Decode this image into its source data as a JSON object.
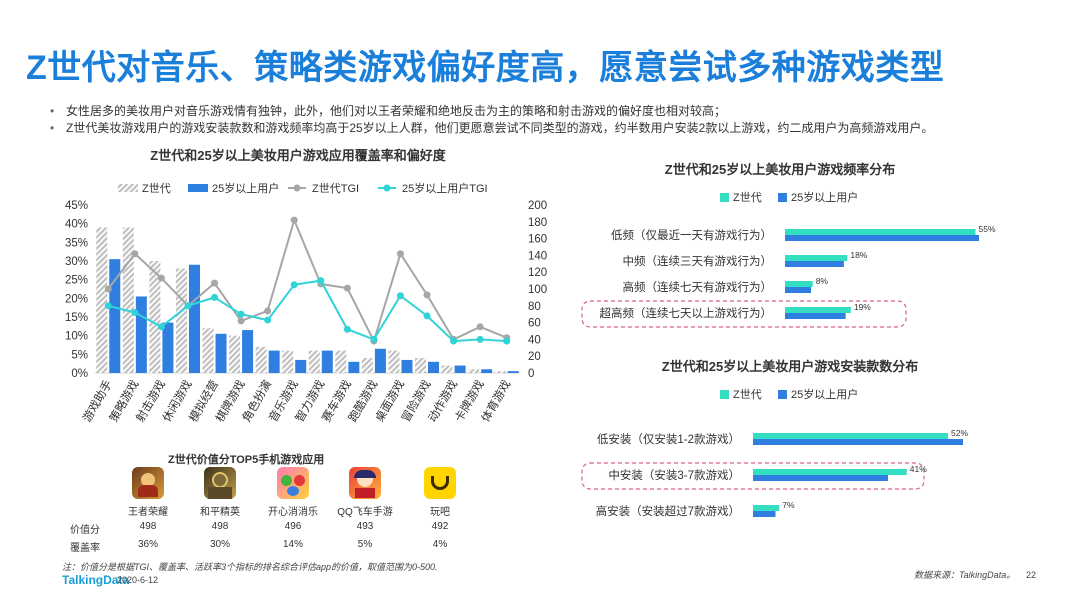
{
  "title": "Z世代对音乐、策略类游戏偏好度高，愿意尝试多种游戏类型",
  "bullets": [
    "女性居多的美妆用户对音乐游戏情有独钟，此外，他们对以王者荣耀和绝地反击为主的策略和射击游戏的偏好度也相对较高；",
    "Z世代美妆游戏用户的游戏安装款数和游戏频率均高于25岁以上人群，他们更愿意尝试不同类型的游戏，约半数用户安装2款以上游戏，约二成用户为高频游戏用户。"
  ],
  "colors": {
    "gen_z": "#c0c0c0",
    "over25": "#2e7fe0",
    "gen_z_tgi": "#a6a6a6",
    "over25_tgi": "#2fd3d8",
    "gen_z_h": "#33dfc0",
    "over25_h": "#2e7fe0",
    "title": "#1a7fdb",
    "highlight": "#d9657d"
  },
  "chart_data": [
    {
      "type": "bar",
      "title": "Z世代和25岁以上美妆用户游戏应用覆盖率和偏好度",
      "categories": [
        "游戏助手",
        "策略游戏",
        "射击游戏",
        "休闲游戏",
        "模拟经营",
        "棋牌游戏",
        "角色扮演",
        "音乐游戏",
        "智力游戏",
        "赛车游戏",
        "跑酷游戏",
        "桌面游戏",
        "冒险游戏",
        "动作游戏",
        "卡牌游戏",
        "体育游戏"
      ],
      "series": [
        {
          "name": "Z世代",
          "kind": "bar",
          "axis": "left",
          "values": [
            39,
            39,
            30,
            28,
            12,
            10,
            7,
            6,
            6,
            6,
            4,
            6,
            4,
            2,
            1,
            0.5
          ]
        },
        {
          "name": "25岁以上用户",
          "kind": "bar",
          "axis": "left",
          "values": [
            30.5,
            20.5,
            13.5,
            29,
            10.5,
            11.5,
            6,
            3.5,
            6,
            3,
            6.5,
            3.5,
            3,
            2,
            1,
            0.5
          ]
        },
        {
          "name": "Z世代TGI",
          "kind": "line",
          "axis": "right",
          "values": [
            100,
            142,
            113,
            80,
            107,
            62,
            74,
            182,
            106,
            101,
            38,
            142,
            93,
            40,
            55,
            42
          ]
        },
        {
          "name": "25岁以上用户TGI",
          "kind": "line",
          "axis": "right",
          "values": [
            80,
            72,
            55,
            80,
            90,
            70,
            63,
            105,
            110,
            52,
            40,
            92,
            68,
            38,
            40,
            38
          ]
        }
      ],
      "left_axis": {
        "ticks": [
          "45%",
          "40%",
          "35%",
          "30%",
          "25%",
          "20%",
          "15%",
          "10%",
          "5%",
          "0%"
        ],
        "ylim": [
          0,
          45
        ]
      },
      "right_axis": {
        "ticks": [
          "200",
          "180",
          "160",
          "140",
          "120",
          "100",
          "80",
          "60",
          "40",
          "20",
          "0"
        ],
        "ylim": [
          0,
          200
        ]
      }
    },
    {
      "type": "bar",
      "orientation": "horizontal",
      "title": "Z世代和25岁以上美妆用户游戏频率分布",
      "categories": [
        "低频（仅最近一天有游戏行为）",
        "中频（连续三天有游戏行为）",
        "高频（连续七天有游戏行为）",
        "超高频（连续七天以上游戏行为）"
      ],
      "series": [
        {
          "name": "Z世代",
          "values": [
            55,
            18,
            8,
            19
          ]
        },
        {
          "name": "25岁以上用户",
          "values": [
            56,
            17,
            7.5,
            17.5
          ]
        }
      ],
      "data_labels": [
        "55%",
        "18%",
        "8%",
        "19%"
      ],
      "highlight": "超高频（连续七天以上游戏行为）"
    },
    {
      "type": "bar",
      "orientation": "horizontal",
      "title": "Z世代和25岁以上美妆用户游戏安装款数分布",
      "categories": [
        "低安装（仅安装1-2款游戏）",
        "中安装（安装3-7款游戏）",
        "高安装（安装超过7款游戏）"
      ],
      "series": [
        {
          "name": "Z世代",
          "values": [
            52,
            41,
            7
          ]
        },
        {
          "name": "25岁以上用户",
          "values": [
            56,
            36,
            6
          ]
        }
      ],
      "data_labels": [
        "52%",
        "41%",
        "7%"
      ],
      "highlight": "中安装（安装3-7款游戏）"
    }
  ],
  "top5": {
    "title": "Z世代价值分TOP5手机游戏应用",
    "row_labels": {
      "score": "价值分",
      "coverage": "覆盖率"
    },
    "apps": [
      {
        "name": "王者荣耀",
        "score": "498",
        "coverage": "36%",
        "icon": "wangzhe-icon"
      },
      {
        "name": "和平精英",
        "score": "498",
        "coverage": "30%",
        "icon": "heping-icon"
      },
      {
        "name": "开心消消乐",
        "score": "496",
        "coverage": "14%",
        "icon": "xiaoxiaole-icon"
      },
      {
        "name": "QQ飞车手游",
        "score": "493",
        "coverage": "5%",
        "icon": "qqfeiche-icon"
      },
      {
        "name": "玩吧",
        "score": "492",
        "coverage": "4%",
        "icon": "wanba-icon"
      }
    ]
  },
  "footer": {
    "note": "注：价值分是根据TGI、覆盖率、活跃率3个指标的排名综合评估app的价值，取值范围为0-500.",
    "logo": "TalkingData",
    "date": "2020-6-12",
    "source": "数据来源：TalkingData。",
    "page": "22"
  }
}
